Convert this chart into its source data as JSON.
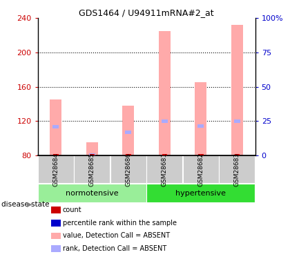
{
  "title": "GDS1464 / U94911mRNA#2_at",
  "samples": [
    "GSM28684",
    "GSM28685",
    "GSM28686",
    "GSM28681",
    "GSM28682",
    "GSM28683"
  ],
  "groups": [
    {
      "name": "normotensive",
      "color": "#88ee88"
    },
    {
      "name": "hypertensive",
      "color": "#22cc22"
    }
  ],
  "values": [
    145,
    95,
    138,
    225,
    165,
    232
  ],
  "ranks": [
    113,
    80,
    107,
    120,
    114,
    120
  ],
  "y_min": 80,
  "y_max": 240,
  "y_ticks": [
    80,
    120,
    160,
    200,
    240
  ],
  "y2_ticks": [
    0,
    25,
    50,
    75,
    100
  ],
  "y2_labels": [
    "0",
    "25",
    "50",
    "75",
    "100%"
  ],
  "bar_color_absent": "#ffaaaa",
  "rank_color_absent": "#aaaaff",
  "count_color": "#cc0000",
  "prank_color": "#0000cc",
  "legend_items": [
    {
      "label": "count",
      "color": "#cc0000"
    },
    {
      "label": "percentile rank within the sample",
      "color": "#0000cc"
    },
    {
      "label": "value, Detection Call = ABSENT",
      "color": "#ffaaaa"
    },
    {
      "label": "rank, Detection Call = ABSENT",
      "color": "#aaaaff"
    }
  ],
  "disease_state_label": "disease state",
  "norm_green": "#99ee99",
  "hyp_green": "#33dd33"
}
